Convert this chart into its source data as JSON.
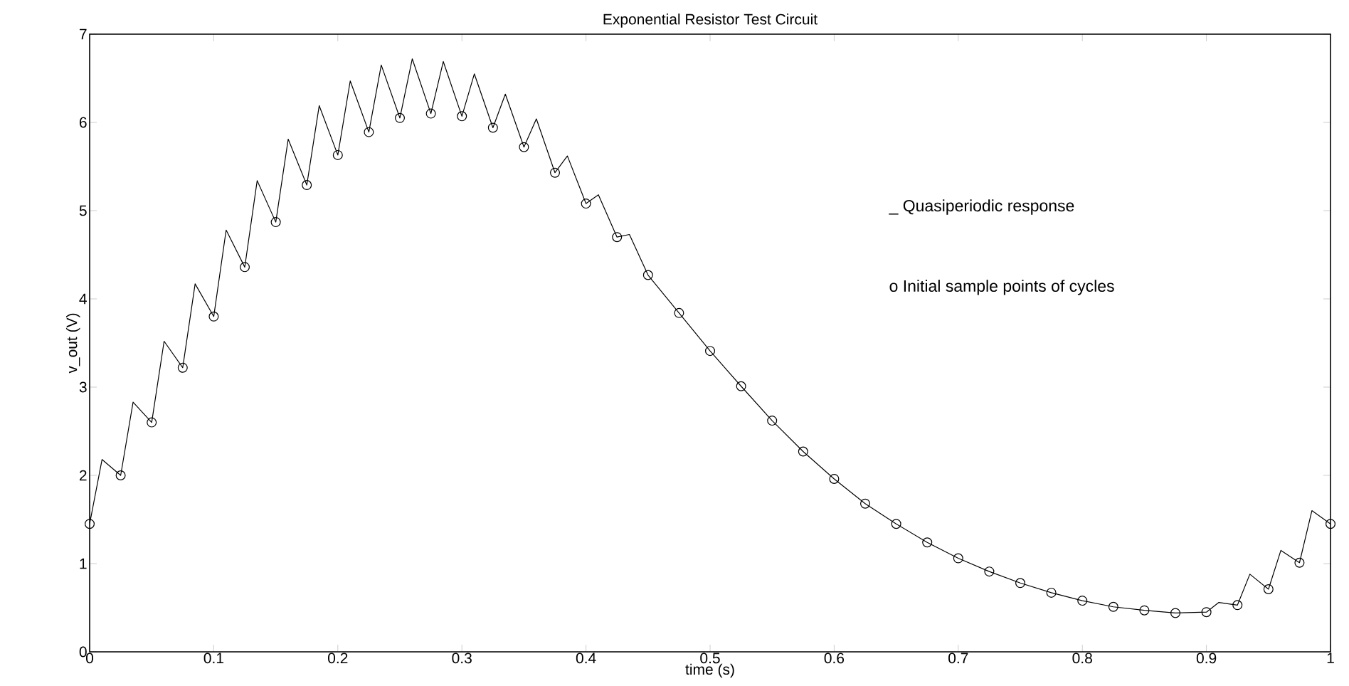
{
  "chart_data": {
    "type": "line",
    "title": "Exponential Resistor Test Circuit",
    "xlabel": "time (s)",
    "ylabel": "v_out (V)",
    "xlim": [
      0,
      1
    ],
    "ylim": [
      0,
      7
    ],
    "xticks": [
      0,
      0.1,
      0.2,
      0.3,
      0.4,
      0.5,
      0.6,
      0.7,
      0.8,
      0.9,
      1
    ],
    "yticks": [
      0,
      1,
      2,
      3,
      4,
      5,
      6,
      7
    ],
    "grid": false,
    "legend": false,
    "annotations": [
      "_ Quasiperiodic response",
      "o Initial sample points of cycles"
    ],
    "series": [
      {
        "color": "#000000",
        "marker": "none",
        "line_style": "solid",
        "x": [
          0,
          0.01,
          0.025,
          0.035,
          0.05,
          0.06,
          0.075,
          0.085,
          0.1,
          0.11,
          0.125,
          0.135,
          0.15,
          0.16,
          0.175,
          0.185,
          0.2,
          0.21,
          0.225,
          0.235,
          0.25,
          0.26,
          0.275,
          0.285,
          0.3,
          0.31,
          0.325,
          0.335,
          0.35,
          0.36,
          0.375,
          0.385,
          0.4,
          0.41,
          0.425,
          0.435,
          0.45,
          0.475,
          0.5,
          0.525,
          0.55,
          0.575,
          0.6,
          0.625,
          0.65,
          0.675,
          0.7,
          0.725,
          0.75,
          0.775,
          0.8,
          0.825,
          0.85,
          0.875,
          0.9,
          0.91,
          0.925,
          0.935,
          0.95,
          0.96,
          0.975,
          0.985,
          1.0
        ],
        "values": [
          1.45,
          2.18,
          2.0,
          2.83,
          2.6,
          3.52,
          3.22,
          4.17,
          3.8,
          4.78,
          4.36,
          5.34,
          4.87,
          5.81,
          5.29,
          6.19,
          5.63,
          6.47,
          5.89,
          6.65,
          6.05,
          6.72,
          6.1,
          6.69,
          6.07,
          6.55,
          5.94,
          6.32,
          5.72,
          6.04,
          5.43,
          5.62,
          5.08,
          5.18,
          4.7,
          4.73,
          4.27,
          3.84,
          3.41,
          3.01,
          2.62,
          2.27,
          1.96,
          1.68,
          1.45,
          1.24,
          1.06,
          0.91,
          0.78,
          0.67,
          0.58,
          0.51,
          0.47,
          0.44,
          0.45,
          0.56,
          0.53,
          0.88,
          0.71,
          1.15,
          1.01,
          1.6,
          1.45
        ]
      },
      {
        "type": "scatter",
        "color": "#000000",
        "marker": "circle",
        "x": [
          0,
          0.025,
          0.05,
          0.075,
          0.1,
          0.125,
          0.15,
          0.175,
          0.2,
          0.225,
          0.25,
          0.275,
          0.3,
          0.325,
          0.35,
          0.375,
          0.4,
          0.425,
          0.45,
          0.475,
          0.5,
          0.525,
          0.55,
          0.575,
          0.6,
          0.625,
          0.65,
          0.675,
          0.7,
          0.725,
          0.75,
          0.775,
          0.8,
          0.825,
          0.85,
          0.875,
          0.9,
          0.925,
          0.95,
          0.975,
          1.0
        ],
        "values": [
          1.45,
          2.0,
          2.6,
          3.22,
          3.8,
          4.36,
          4.87,
          5.29,
          5.63,
          5.89,
          6.05,
          6.1,
          6.07,
          5.94,
          5.72,
          5.43,
          5.08,
          4.7,
          4.27,
          3.84,
          3.41,
          3.01,
          2.62,
          2.27,
          1.96,
          1.68,
          1.45,
          1.24,
          1.06,
          0.91,
          0.78,
          0.67,
          0.58,
          0.51,
          0.47,
          0.44,
          0.45,
          0.53,
          0.71,
          1.01,
          1.45
        ]
      }
    ]
  }
}
